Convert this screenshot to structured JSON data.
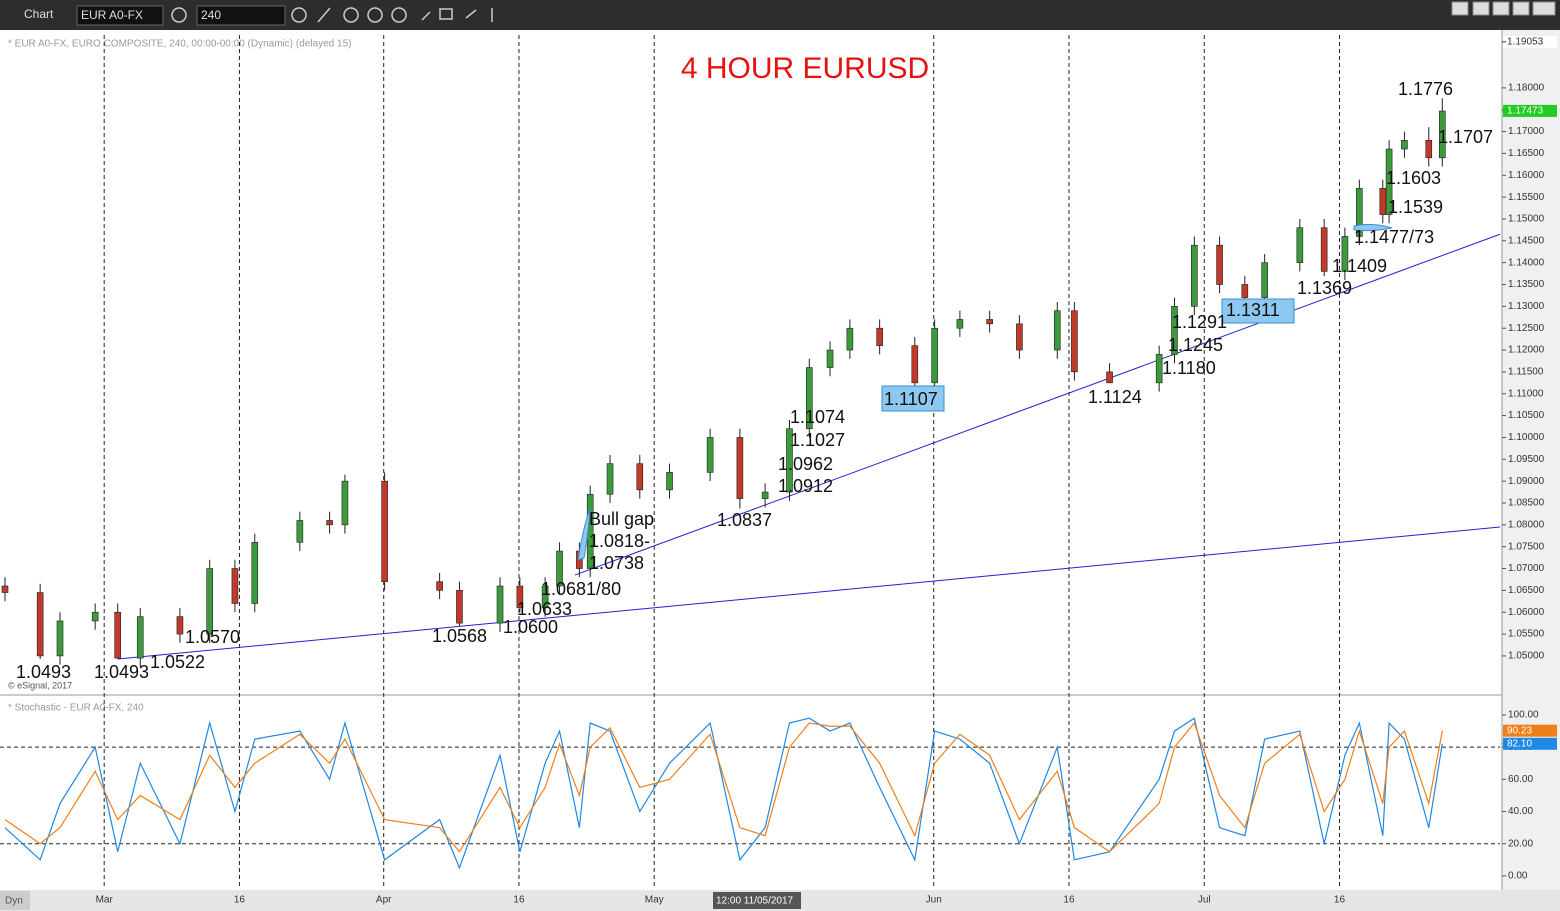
{
  "ui": {
    "app_title": "Chart",
    "symbol": "EUR A0-FX",
    "interval": "240",
    "credit": "© eSignal, 2017",
    "mode": "Dyn",
    "cursor_time": "12:00 11/05/2017"
  },
  "chart_data": [
    {
      "type": "candlestick",
      "title": "4 HOUR EURUSD",
      "subtitle": "* EUR A0-FX, EURO COMPOSITE, 240, 00:00-00:00 (Dynamic) (delayed 15)",
      "x": [
        49,
        52.9,
        55.1,
        59,
        61.5,
        64,
        68.4,
        71.7,
        74.5,
        76.7,
        81.7,
        85,
        86.7,
        91.1,
        97.2,
        99.4,
        103.9,
        106.1,
        108.9,
        110.5,
        112.7,
        113.9,
        116.1,
        119.4,
        122.7,
        127.2,
        130.5,
        133.3,
        136,
        138.2,
        140.5,
        142.7,
        146,
        149.9,
        152.1,
        154.9,
        158.2,
        161.5,
        165.7,
        167.6,
        171.5,
        177,
        178.7,
        180.9,
        183.7,
        186.5,
        188.7,
        192.6,
        195.3,
        197.6,
        199.2,
        201.8,
        202.5,
        204.2,
        206.9,
        208.4
      ],
      "open": [
        1.066,
        1.0645,
        1.05,
        1.058,
        1.06,
        1.0495,
        1.059,
        1.055,
        1.07,
        1.062,
        1.076,
        1.081,
        1.08,
        1.09,
        1.067,
        1.065,
        1.0575,
        1.066,
        1.061,
        1.066,
        1.074,
        1.07,
        1.087,
        1.094,
        1.088,
        1.092,
        1.1,
        1.086,
        1.0875,
        1.102,
        1.116,
        1.12,
        1.125,
        1.121,
        1.1125,
        1.125,
        1.127,
        1.126,
        1.12,
        1.129,
        1.115,
        1.1125,
        1.119,
        1.13,
        1.144,
        1.135,
        1.132,
        1.14,
        1.148,
        1.138,
        1.146,
        1.157,
        1.151,
        1.166,
        1.168,
        1.164
      ],
      "high": [
        1.068,
        1.0665,
        1.06,
        1.062,
        1.062,
        1.061,
        1.061,
        1.072,
        1.072,
        1.078,
        1.083,
        1.083,
        1.0915,
        1.092,
        1.069,
        1.067,
        1.068,
        1.068,
        1.068,
        1.076,
        1.076,
        1.089,
        1.096,
        1.096,
        1.094,
        1.102,
        1.102,
        1.0895,
        1.104,
        1.118,
        1.122,
        1.127,
        1.127,
        1.123,
        1.127,
        1.129,
        1.129,
        1.128,
        1.131,
        1.131,
        1.117,
        1.121,
        1.132,
        1.146,
        1.146,
        1.137,
        1.142,
        1.15,
        1.15,
        1.148,
        1.159,
        1.159,
        1.168,
        1.17,
        1.171,
        1.1776
      ],
      "low": [
        1.0625,
        1.0493,
        1.048,
        1.056,
        1.0493,
        1.0475,
        1.053,
        1.053,
        1.06,
        1.06,
        1.074,
        1.078,
        1.078,
        1.065,
        1.063,
        1.0568,
        1.0555,
        1.06,
        1.059,
        1.064,
        1.068,
        1.068,
        1.085,
        1.086,
        1.086,
        1.09,
        1.0837,
        1.084,
        1.0855,
        1.1,
        1.114,
        1.118,
        1.119,
        1.1107,
        1.1105,
        1.123,
        1.124,
        1.118,
        1.118,
        1.113,
        1.1124,
        1.1105,
        1.117,
        1.128,
        1.133,
        1.1311,
        1.13,
        1.138,
        1.1369,
        1.136,
        1.144,
        1.149,
        1.149,
        1.164,
        1.162,
        1.162
      ],
      "close": [
        1.0645,
        1.05,
        1.058,
        1.06,
        1.0495,
        1.059,
        1.055,
        1.07,
        1.062,
        1.076,
        1.081,
        1.08,
        1.09,
        1.067,
        1.065,
        1.0575,
        1.066,
        1.061,
        1.066,
        1.074,
        1.07,
        1.087,
        1.094,
        1.088,
        1.092,
        1.1,
        1.086,
        1.0875,
        1.102,
        1.116,
        1.12,
        1.125,
        1.121,
        1.1125,
        1.125,
        1.127,
        1.126,
        1.12,
        1.129,
        1.115,
        1.1125,
        1.119,
        1.13,
        1.144,
        1.135,
        1.132,
        1.14,
        1.148,
        1.138,
        1.146,
        1.157,
        1.151,
        1.166,
        1.168,
        1.164,
        1.1747
      ],
      "up_color": "#3c9a3c",
      "down_color": "#c0392b",
      "xlim": [
        49,
        214.8
      ],
      "xticks": [
        {
          "value": 60,
          "label": "Mar"
        },
        {
          "value": 75,
          "label": "16"
        },
        {
          "value": 91,
          "label": "Apr"
        },
        {
          "value": 106,
          "label": "16"
        },
        {
          "value": 121,
          "label": "May"
        },
        {
          "value": 152,
          "label": "Jun"
        },
        {
          "value": 167,
          "label": "16"
        },
        {
          "value": 182,
          "label": "Jul"
        },
        {
          "value": 197,
          "label": "16"
        }
      ],
      "ylim": [
        1.0422,
        1.1921
      ],
      "yticks": [
        {
          "value": 1.05,
          "label": "1.05000"
        },
        {
          "value": 1.055,
          "label": "1.05500"
        },
        {
          "value": 1.06,
          "label": "1.06000"
        },
        {
          "value": 1.065,
          "label": "1.06500"
        },
        {
          "value": 1.07,
          "label": "1.07000"
        },
        {
          "value": 1.075,
          "label": "1.07500"
        },
        {
          "value": 1.08,
          "label": "1.08000"
        },
        {
          "value": 1.085,
          "label": "1.08500"
        },
        {
          "value": 1.09,
          "label": "1.09000"
        },
        {
          "value": 1.095,
          "label": "1.09500"
        },
        {
          "value": 1.1,
          "label": "1.10000"
        },
        {
          "value": 1.105,
          "label": "1.10500"
        },
        {
          "value": 1.11,
          "label": "1.11000"
        },
        {
          "value": 1.115,
          "label": "1.11500"
        },
        {
          "value": 1.12,
          "label": "1.12000"
        },
        {
          "value": 1.125,
          "label": "1.12500"
        },
        {
          "value": 1.13,
          "label": "1.13000"
        },
        {
          "value": 1.135,
          "label": "1.13500"
        },
        {
          "value": 1.14,
          "label": "1.14000"
        },
        {
          "value": 1.145,
          "label": "1.14500"
        },
        {
          "value": 1.15,
          "label": "1.15000"
        },
        {
          "value": 1.155,
          "label": "1.15500"
        },
        {
          "value": 1.16,
          "label": "1.16000"
        },
        {
          "value": 1.165,
          "label": "1.16500"
        },
        {
          "value": 1.17,
          "label": "1.17000"
        },
        {
          "value": 1.175,
          "label": "1.17500"
        },
        {
          "value": 1.18,
          "label": "1.18000"
        }
      ],
      "top_price": 1.19053,
      "current_price": 1.17473,
      "current_color": "#22cc22",
      "trendlines": [
        [
          [
            61.5,
            1.0493
          ],
          [
            214.8,
            1.0795
          ]
        ],
        [
          [
            112.2,
            1.0685
          ],
          [
            214.8,
            1.1465
          ]
        ]
      ],
      "trend_color": "#2222cc",
      "annotations": [
        "1.0493",
        "1.0493",
        "1.0522",
        "1.0570",
        "1.0568",
        "1.0600",
        "1.0633",
        "1.0681/80",
        "Bull gap",
        "1.0818-",
        "1.0738",
        "1.0837",
        "1.0912",
        "1.0962",
        "1.1027",
        "1.1074",
        "1.1107",
        "1.1124",
        "1.1180",
        "1.1245",
        "1.1291",
        "1.1311",
        "1.1369",
        "1.1409",
        "1.1477/73",
        "1.1539",
        "1.1603",
        "1.1707",
        "1.1776"
      ],
      "title_color": "#e8110f"
    },
    {
      "type": "line",
      "title": "* Stochastic - EUR A0-FX, 240",
      "x": [
        49,
        52.9,
        55.1,
        59,
        61.5,
        64,
        68.4,
        71.7,
        74.5,
        76.7,
        81.7,
        85,
        86.7,
        91.1,
        97.2,
        99.4,
        103.9,
        106.1,
        108.9,
        110.5,
        112.7,
        113.9,
        116.1,
        119.4,
        122.7,
        127.2,
        130.5,
        133.3,
        136,
        138.2,
        140.5,
        142.7,
        146,
        149.9,
        152.1,
        154.9,
        158.2,
        161.5,
        165.7,
        167.6,
        171.5,
        177,
        178.7,
        180.9,
        183.7,
        186.5,
        188.7,
        192.6,
        195.3,
        197.6,
        199.2,
        201.8,
        202.5,
        204.2,
        206.9,
        208.4
      ],
      "series": [
        {
          "color": "#1e88e5",
          "values": [
            30,
            10,
            45,
            80,
            15,
            70,
            20,
            95,
            40,
            85,
            90,
            60,
            95,
            10,
            35,
            5,
            75,
            15,
            70,
            90,
            30,
            95,
            90,
            40,
            70,
            95,
            10,
            30,
            95,
            98,
            90,
            95,
            55,
            10,
            90,
            85,
            70,
            20,
            80,
            10,
            15,
            60,
            90,
            98,
            30,
            25,
            85,
            90,
            20,
            75,
            95,
            25,
            95,
            85,
            30,
            82.1
          ]
        },
        {
          "color": "#f07f1a",
          "values": [
            35,
            20,
            30,
            65,
            35,
            50,
            35,
            75,
            55,
            70,
            88,
            70,
            85,
            35,
            30,
            15,
            55,
            30,
            55,
            82,
            50,
            80,
            92,
            55,
            60,
            88,
            30,
            25,
            80,
            95,
            93,
            93,
            70,
            25,
            70,
            88,
            75,
            35,
            65,
            30,
            15,
            45,
            80,
            95,
            50,
            30,
            70,
            88,
            40,
            60,
            90,
            45,
            80,
            90,
            45,
            90.23
          ]
        }
      ],
      "tags": [
        90.23,
        {
          "value": 82.1,
          "label": "82.10"
        }
      ],
      "tag_colors": [
        "#f07f1a",
        "#1e88e5"
      ],
      "xlim": [
        49,
        214.8
      ],
      "ylim": [
        -7.5,
        109.3
      ],
      "yticks": [
        {
          "value": 0,
          "label": "0.00"
        },
        {
          "value": 20,
          "label": "20.00"
        },
        {
          "value": 40,
          "label": "40.00"
        },
        {
          "value": 60,
          "label": "60.00"
        },
        {
          "value": 80,
          "label": "80.00"
        },
        {
          "value": 100,
          "label": "100.00"
        }
      ],
      "levels": [
        20,
        80
      ]
    }
  ]
}
